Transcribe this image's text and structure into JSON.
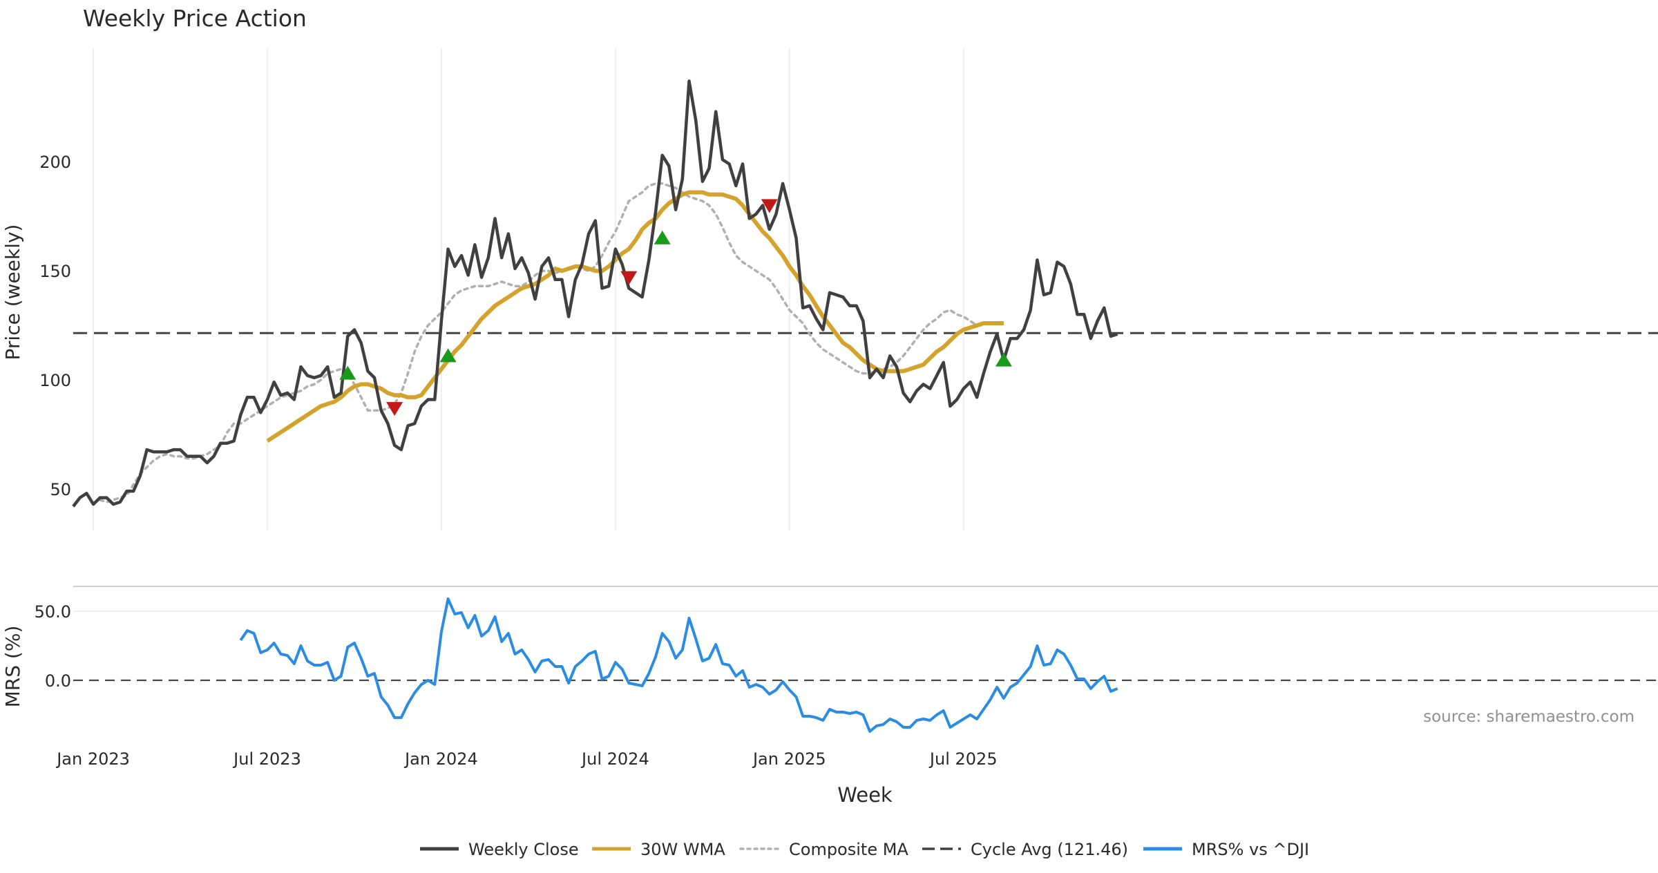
{
  "chart_data": {
    "type": "line",
    "title": "Weekly Price Action",
    "xlabel": "Week",
    "x_ticks": [
      "Jan 2023",
      "Jul 2023",
      "Jan 2024",
      "Jul 2024",
      "Jan 2025",
      "Jul 2025"
    ],
    "x_tick_weeks": [
      3,
      29,
      55,
      81,
      107,
      133
    ],
    "price_panel": {
      "ylabel": "Price (weekly)",
      "ylim": [
        31,
        252
      ],
      "yticks": [
        "50",
        "100",
        "150",
        "200"
      ],
      "ytick_values": [
        50,
        100,
        150,
        200
      ],
      "cycle_avg": 121.46,
      "series": [
        {
          "name": "Weekly Close",
          "color": "#404040",
          "start_week": 0,
          "values": [
            42,
            46,
            48,
            43,
            46,
            46,
            43,
            44,
            49,
            49,
            56,
            68,
            67,
            67,
            67,
            68,
            68,
            65,
            65,
            65,
            62,
            65,
            71,
            71,
            72,
            84,
            92,
            92,
            85,
            91,
            99,
            93,
            94,
            91,
            106,
            102,
            101,
            102,
            106,
            92,
            94,
            120,
            123,
            117,
            104,
            101,
            86,
            80,
            70,
            68,
            79,
            80,
            88,
            91,
            91,
            127,
            160,
            152,
            157,
            148,
            162,
            147,
            156,
            174,
            156,
            167,
            151,
            156,
            149,
            137,
            152,
            156,
            146,
            146,
            129,
            146,
            153,
            167,
            173,
            142,
            143,
            160,
            153,
            142,
            140,
            138,
            155,
            177,
            203,
            198,
            178,
            192,
            237,
            219,
            191,
            197,
            223,
            201,
            199,
            189,
            199,
            174,
            176,
            180,
            169,
            176,
            190,
            178,
            165,
            133,
            134,
            128,
            123,
            140,
            139,
            138,
            134,
            134,
            127,
            101,
            105,
            101,
            111,
            106,
            94,
            90,
            95,
            98,
            96,
            102,
            108,
            88,
            91,
            96,
            99,
            92,
            103,
            113,
            121,
            109,
            119,
            119,
            123,
            132,
            155,
            139,
            140,
            154,
            152,
            144,
            130,
            130,
            119,
            127,
            133,
            120,
            121
          ]
        },
        {
          "name": "30W WMA",
          "color": "#d4a32e",
          "start_week": 29,
          "values": [
            72,
            74,
            76,
            78,
            80,
            82,
            84,
            86,
            88,
            89,
            90,
            92,
            95,
            97,
            98,
            98,
            97,
            96,
            94,
            93,
            93,
            92,
            92,
            93,
            97,
            101,
            105,
            109,
            113,
            116,
            120,
            124,
            128,
            131,
            134,
            136,
            138,
            140,
            142,
            143,
            144,
            146,
            148,
            151,
            150,
            151,
            152,
            152,
            151,
            150,
            150,
            152,
            155,
            158,
            160,
            164,
            169,
            172,
            174,
            178,
            181,
            183,
            185,
            186,
            186,
            186,
            185,
            185,
            185,
            184,
            183,
            180,
            176,
            172,
            168,
            165,
            161,
            157,
            152,
            148,
            143,
            139,
            134,
            129,
            125,
            121,
            117,
            115,
            112,
            109,
            107,
            105,
            104,
            104,
            104,
            104,
            105,
            106,
            107,
            110,
            113,
            115,
            118,
            121,
            123,
            124,
            125,
            126,
            126,
            126,
            126
          ]
        },
        {
          "name": "Composite MA",
          "color": "#b0b0b0",
          "start_week": 4,
          "values": [
            45,
            44,
            45,
            46,
            47,
            52,
            57,
            60,
            63,
            65,
            66,
            65,
            65,
            64,
            64,
            65,
            66,
            68,
            70,
            76,
            80,
            80,
            82,
            84,
            86,
            88,
            90,
            92,
            93,
            94,
            95,
            97,
            98,
            100,
            103,
            104,
            105,
            103,
            98,
            92,
            86,
            86,
            86,
            87,
            89,
            94,
            103,
            113,
            120,
            125,
            128,
            131,
            135,
            139,
            141,
            142,
            143,
            143,
            143,
            144,
            145,
            144,
            143,
            143,
            145,
            148,
            150,
            150,
            149,
            150,
            151,
            152,
            151,
            150,
            152,
            157,
            163,
            168,
            175,
            182,
            184,
            186,
            189,
            190,
            190,
            189,
            188,
            186,
            184,
            183,
            182,
            180,
            176,
            170,
            163,
            157,
            154,
            152,
            150,
            148,
            146,
            142,
            137,
            132,
            129,
            126,
            121,
            117,
            114,
            112,
            110,
            108,
            106,
            104,
            103,
            103,
            104,
            105,
            106,
            108,
            111,
            115,
            119,
            123,
            126,
            128,
            131,
            132,
            130,
            129,
            127,
            125,
            125
          ]
        }
      ],
      "signals": [
        {
          "type": "buy",
          "week": 41,
          "value": 103,
          "color": "#1a9a1a"
        },
        {
          "type": "sell",
          "week": 48,
          "value": 87,
          "color": "#c21818"
        },
        {
          "type": "buy",
          "week": 56,
          "value": 111,
          "color": "#1a9a1a"
        },
        {
          "type": "sell",
          "week": 83,
          "value": 147,
          "color": "#c21818"
        },
        {
          "type": "buy",
          "week": 88,
          "value": 165,
          "color": "#1a9a1a"
        },
        {
          "type": "sell",
          "week": 104,
          "value": 180,
          "color": "#c21818"
        },
        {
          "type": "buy",
          "week": 139,
          "value": 109,
          "color": "#1a9a1a"
        }
      ]
    },
    "mrs_panel": {
      "ylabel": "MRS (%)",
      "ylim": [
        -45,
        65
      ],
      "yticks": [
        "50.0",
        "0.0"
      ],
      "ytick_values": [
        50,
        0
      ],
      "series": [
        {
          "name": "MRS% vs ^DJI",
          "color": "#2b8ce3",
          "start_week": 25,
          "values": [
            29,
            36,
            34,
            20,
            22,
            27,
            19,
            18,
            12,
            25,
            14,
            11,
            11,
            13,
            0,
            3,
            24,
            27,
            16,
            3,
            5,
            -12,
            -18,
            -27,
            -27,
            -17,
            -9,
            -3,
            0,
            -3,
            35,
            59,
            48,
            49,
            38,
            47,
            32,
            36,
            46,
            28,
            34,
            19,
            22,
            15,
            6,
            14,
            15,
            10,
            10,
            -2,
            10,
            14,
            19,
            21,
            1,
            3,
            13,
            8,
            -2,
            -3,
            -4,
            5,
            17,
            34,
            28,
            16,
            22,
            45,
            30,
            14,
            16,
            26,
            12,
            11,
            3,
            7,
            -5,
            -3,
            -5,
            -10,
            -7,
            -1,
            -7,
            -12,
            -26,
            -26,
            -27,
            -29,
            -21,
            -23,
            -23,
            -24,
            -23,
            -25,
            -37,
            -33,
            -32,
            -28,
            -30,
            -34,
            -34,
            -29,
            -28,
            -29,
            -25,
            -22,
            -34,
            -31,
            -28,
            -25,
            -28,
            -21,
            -14,
            -5,
            -13,
            -5,
            -2,
            4,
            10,
            25,
            11,
            12,
            22,
            19,
            11,
            1,
            1,
            -6,
            -1,
            3,
            -8,
            -6
          ]
        }
      ]
    },
    "legend": {
      "position": "bottom",
      "entries": [
        {
          "label": "Weekly Close",
          "color": "#404040",
          "style": "solid"
        },
        {
          "label": "30W WMA",
          "color": "#d4a32e",
          "style": "solid"
        },
        {
          "label": "Composite MA",
          "color": "#b0b0b0",
          "style": "dotted"
        },
        {
          "label": "Cycle Avg (121.46)",
          "color": "#404040",
          "style": "dashed"
        },
        {
          "label": "MRS% vs ^DJI",
          "color": "#2b8ce3",
          "style": "solid"
        }
      ]
    },
    "source_note": "source: sharemaestro.com"
  }
}
